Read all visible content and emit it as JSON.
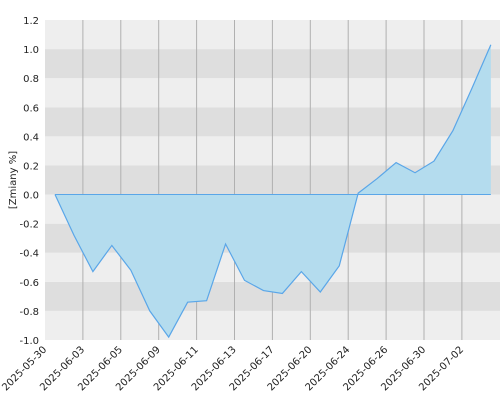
{
  "chart_data": {
    "type": "area",
    "y_label": "[Zmiany %]",
    "categories": [
      "2025-05-30",
      null,
      "2025-06-03",
      null,
      "2025-06-05",
      null,
      "2025-06-09",
      null,
      "2025-06-11",
      null,
      "2025-06-13",
      null,
      "2025-06-17",
      null,
      "2025-06-20",
      null,
      "2025-06-24",
      null,
      "2025-06-26",
      null,
      "2025-06-30",
      null,
      "2025-07-02",
      null
    ],
    "values": [
      0.0,
      -0.28,
      -0.53,
      -0.35,
      -0.52,
      -0.8,
      -0.98,
      -0.74,
      -0.73,
      -0.34,
      -0.59,
      -0.66,
      -0.68,
      -0.53,
      -0.67,
      -0.49,
      0.01,
      0.11,
      0.22,
      0.15,
      0.23,
      0.44,
      0.73,
      1.03
    ],
    "color": "#5aa6e8",
    "fill": "#b4dcee",
    "ylim": [
      -1.0,
      1.2
    ],
    "yticks": [
      {
        "value": -1.0,
        "label": "-1.0"
      },
      {
        "value": -0.8,
        "label": "-0.8"
      },
      {
        "value": -0.6,
        "label": "-0.6"
      },
      {
        "value": -0.4,
        "label": "-0.4"
      },
      {
        "value": -0.2,
        "label": "-0.2"
      },
      {
        "value": 0,
        "label": "0.0"
      },
      {
        "value": 0.2,
        "label": "0.2"
      },
      {
        "value": 0.4,
        "label": "0.4"
      },
      {
        "value": 0.6,
        "label": "0.6"
      },
      {
        "value": 0.8,
        "label": "0.8"
      },
      {
        "value": 1.0,
        "label": "1.0"
      },
      {
        "value": 1.2,
        "label": "1.2"
      }
    ],
    "grid": true
  }
}
